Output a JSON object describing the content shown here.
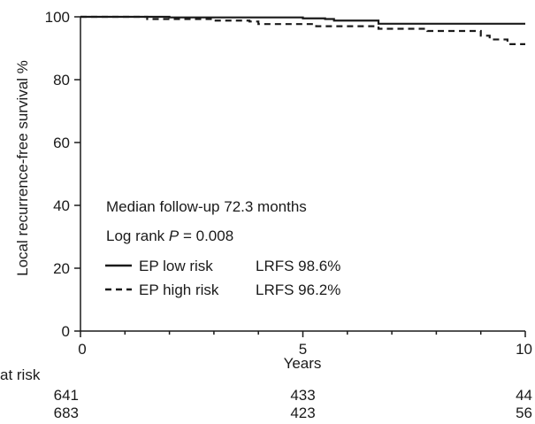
{
  "chart_data": {
    "type": "line",
    "ylabel": "Local recurrence-free survival %",
    "xlabel": "Years",
    "xlim": [
      0,
      10
    ],
    "ylim": [
      0,
      100
    ],
    "x_ticks": [
      0,
      5,
      10
    ],
    "y_ticks": [
      0,
      20,
      40,
      60,
      80,
      100
    ],
    "step": true,
    "grid": false,
    "annotations": [
      "Median follow-up 72.3 months",
      "Log rank "
    ],
    "annotation_p": {
      "symbol": "P",
      "value": " = 0.008"
    },
    "series": [
      {
        "name": "EP low risk",
        "stat": "LRFS 98.6%",
        "line_style": "solid",
        "points": [
          [
            0,
            100
          ],
          [
            2.0,
            99.8
          ],
          [
            5.0,
            99.5
          ],
          [
            5.5,
            99.3
          ],
          [
            5.7,
            98.8
          ],
          [
            6.6,
            98.8
          ],
          [
            6.7,
            97.8
          ],
          [
            10,
            97.8
          ]
        ]
      },
      {
        "name": "EP high risk",
        "stat": "LRFS 96.2%",
        "line_style": "dashed",
        "points": [
          [
            0,
            100
          ],
          [
            1.5,
            99.3
          ],
          [
            3.0,
            98.8
          ],
          [
            3.8,
            98.5
          ],
          [
            4.0,
            97.7
          ],
          [
            5.1,
            97.7
          ],
          [
            5.3,
            97.0
          ],
          [
            6.6,
            97.0
          ],
          [
            6.7,
            96.2
          ],
          [
            7.6,
            96.2
          ],
          [
            7.8,
            95.5
          ],
          [
            8.8,
            95.5
          ],
          [
            9.0,
            94.0
          ],
          [
            9.2,
            92.8
          ],
          [
            9.6,
            91.3
          ],
          [
            10,
            91.3
          ]
        ]
      }
    ],
    "at_risk": {
      "label": "at risk",
      "times": [
        0,
        5,
        10
      ],
      "rows": [
        [
          "641",
          "433",
          "44"
        ],
        [
          "683",
          "423",
          "56"
        ]
      ]
    }
  }
}
